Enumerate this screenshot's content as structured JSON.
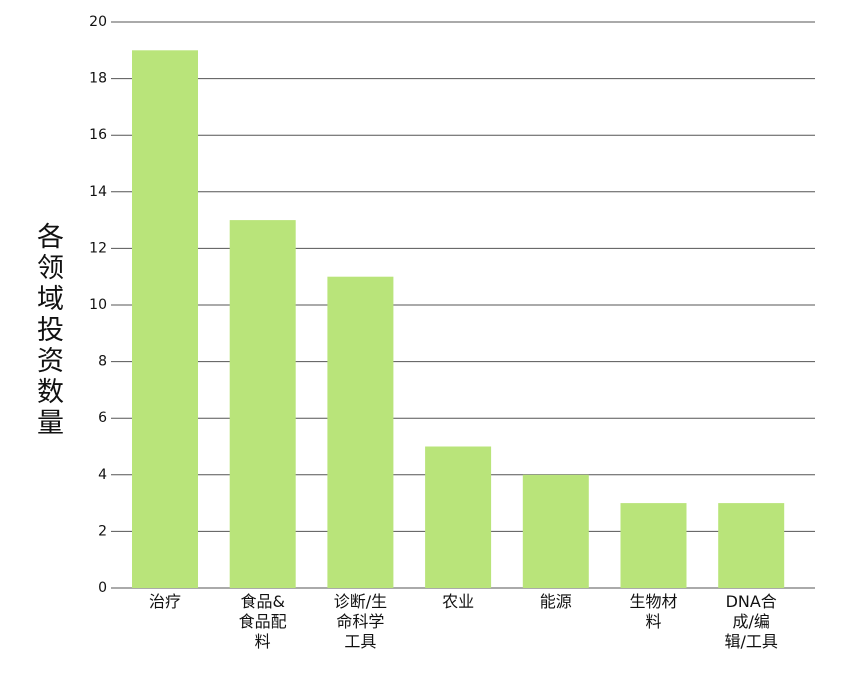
{
  "chart_data": {
    "type": "bar",
    "y_label": "各领域投资数量",
    "categories": [
      "治疗",
      "食品&食品配料",
      "诊断/生命科学工具",
      "农业",
      "能源",
      "生物材料",
      "DNA合成/编辑/工具"
    ],
    "values": [
      19,
      13,
      11,
      5,
      4,
      3,
      3
    ],
    "color": "#b9e47a",
    "ylim": [
      0,
      20
    ],
    "yticks": [
      0,
      2,
      4,
      6,
      8,
      10,
      12,
      14,
      16,
      18,
      20
    ],
    "grid": true
  }
}
